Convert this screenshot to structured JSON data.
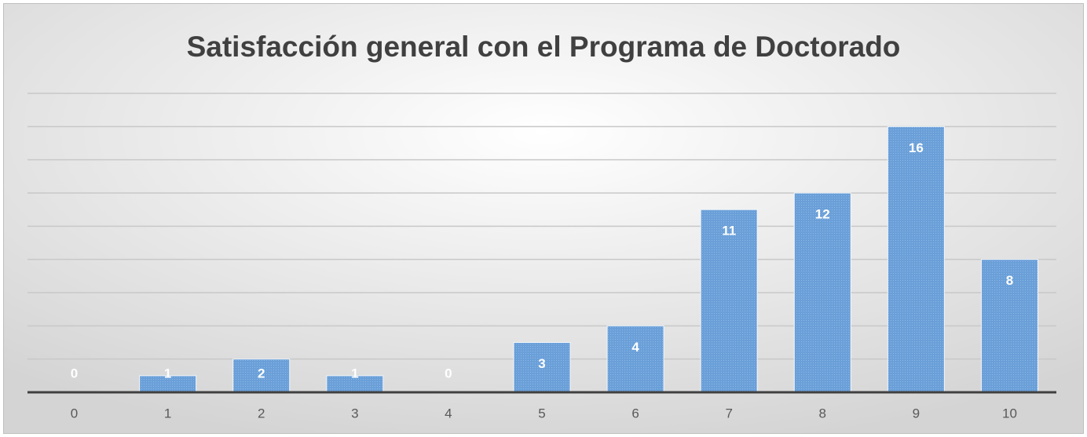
{
  "chart_data": {
    "type": "bar",
    "title": "Satisfacción general con el Programa de Doctorado",
    "categories": [
      "0",
      "1",
      "2",
      "3",
      "4",
      "5",
      "6",
      "7",
      "8",
      "9",
      "10"
    ],
    "values": [
      0,
      1,
      2,
      1,
      0,
      3,
      4,
      11,
      12,
      16,
      8
    ],
    "color": "#6a9fd8",
    "ylim": [
      0,
      18
    ],
    "yticks": [
      0,
      2,
      4,
      6,
      8,
      10,
      12,
      14,
      16,
      18
    ],
    "grid": true
  }
}
